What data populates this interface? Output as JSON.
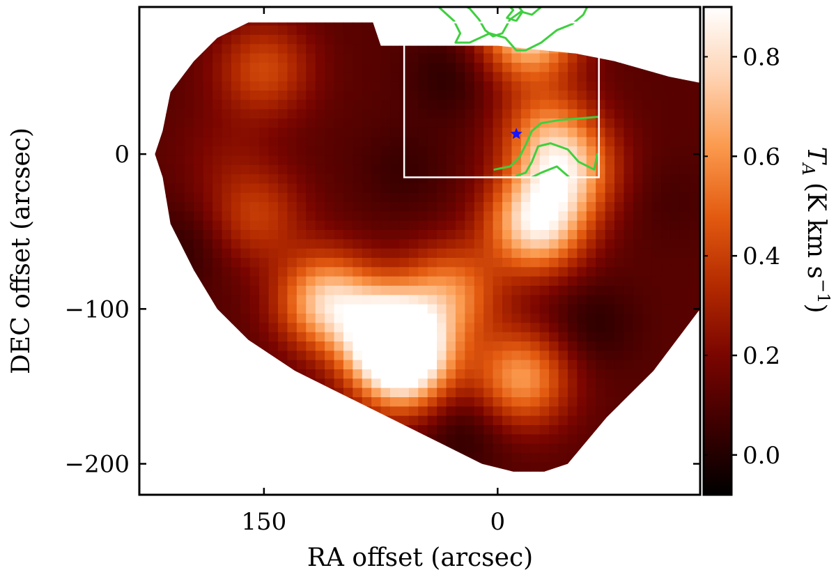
{
  "chart_data": {
    "type": "heatmap",
    "title": "",
    "xlabel": "RA offset (arcsec)",
    "ylabel": "DEC offset (arcsec)",
    "xlim": [
      230,
      -130
    ],
    "ylim": [
      -220,
      95
    ],
    "x_axis_reversed": true,
    "x_ticks": [
      150,
      0
    ],
    "x_tick_labels": [
      "150",
      "0"
    ],
    "y_ticks": [
      0,
      -100,
      -200
    ],
    "y_tick_labels": [
      "0",
      "−100",
      "−200"
    ],
    "colorbar": {
      "label": "T_A (K km s⁻¹)",
      "label_parts": {
        "symbol": "T",
        "subscript": "A",
        "units": "(K km s",
        "exponent": "−1",
        "close": ")"
      },
      "vmin": -0.08,
      "vmax": 0.9,
      "ticks": [
        0.0,
        0.2,
        0.4,
        0.6,
        0.8
      ],
      "tick_labels": [
        "0.0",
        "0.2",
        "0.4",
        "0.6",
        "0.8"
      ],
      "colormap": "gist_heat",
      "colormap_stops": [
        "#000000",
        "#3d0000",
        "#7a0500",
        "#b32a00",
        "#e35b10",
        "#fb9a4e",
        "#fed3b3",
        "#ffffff"
      ]
    },
    "coverage_polygon": [
      [
        160,
        85
      ],
      [
        80,
        85
      ],
      [
        75,
        70
      ],
      [
        0,
        70
      ],
      [
        -50,
        65
      ],
      [
        -75,
        60
      ],
      [
        -110,
        50
      ],
      [
        -135,
        45
      ],
      [
        -130,
        0
      ],
      [
        -130,
        -100
      ],
      [
        -100,
        -140
      ],
      [
        -70,
        -170
      ],
      [
        -45,
        -200
      ],
      [
        -30,
        -205
      ],
      [
        -10,
        -205
      ],
      [
        10,
        -200
      ],
      [
        40,
        -185
      ],
      [
        70,
        -170
      ],
      [
        100,
        -155
      ],
      [
        130,
        -140
      ],
      [
        160,
        -120
      ],
      [
        180,
        -100
      ],
      [
        195,
        -75
      ],
      [
        210,
        -45
      ],
      [
        215,
        -15
      ],
      [
        220,
        0
      ],
      [
        215,
        15
      ],
      [
        210,
        40
      ],
      [
        195,
        60
      ],
      [
        180,
        75
      ]
    ],
    "background_level": 0.12,
    "emission_peaks": [
      {
        "ra": 150,
        "dec": 55,
        "value": 0.42
      },
      {
        "ra": 155,
        "dec": -40,
        "value": 0.38
      },
      {
        "ra": 110,
        "dec": -95,
        "value": 0.72
      },
      {
        "ra": 70,
        "dec": -115,
        "value": 0.78
      },
      {
        "ra": 60,
        "dec": -135,
        "value": 0.9
      },
      {
        "ra": 30,
        "dec": -90,
        "value": 0.55
      },
      {
        "ra": -25,
        "dec": -45,
        "value": 0.82
      },
      {
        "ra": -45,
        "dec": -10,
        "value": 0.62
      },
      {
        "ra": -30,
        "dec": 15,
        "value": 0.45
      },
      {
        "ra": -20,
        "dec": 80,
        "value": 0.8
      },
      {
        "ra": -15,
        "dec": -145,
        "value": 0.62
      },
      {
        "ra": 175,
        "dec": 0,
        "value": 0.2
      }
    ],
    "emission_dips": [
      {
        "ra": 30,
        "dec": 50,
        "value": 0.02
      },
      {
        "ra": 60,
        "dec": -10,
        "value": 0.05
      },
      {
        "ra": -60,
        "dec": -110,
        "value": 0.02
      },
      {
        "ra": 20,
        "dec": -175,
        "value": 0.0
      },
      {
        "ra": 200,
        "dec": -60,
        "value": 0.03
      },
      {
        "ra": -110,
        "dec": -30,
        "value": 0.08
      }
    ],
    "box_region": {
      "ra_min": -65,
      "ra_max": 60,
      "dec_min": -15,
      "dec_max": 85,
      "color": "#ffffff"
    },
    "marker": {
      "shape": "star",
      "ra": -12,
      "dec": 13,
      "color": "#1414ff"
    },
    "contours": {
      "color": "#3fcf3f",
      "paths": [
        [
          [
            50,
            98
          ],
          [
            40,
            97
          ],
          [
            28,
            86
          ],
          [
            24,
            78
          ],
          [
            27,
            72
          ],
          [
            18,
            72
          ],
          [
            5,
            78
          ],
          [
            -5,
            75
          ],
          [
            -12,
            67
          ],
          [
            -18,
            67
          ],
          [
            -28,
            72
          ],
          [
            -38,
            80
          ],
          [
            -48,
            84
          ],
          [
            -55,
            90
          ],
          [
            -58,
            96
          ]
        ],
        [
          [
            25,
            98
          ],
          [
            18,
            94
          ],
          [
            12,
            87
          ],
          [
            8,
            80
          ],
          [
            3,
            76
          ],
          [
            -3,
            78
          ],
          [
            -8,
            87
          ],
          [
            -15,
            92
          ],
          [
            -22,
            90
          ],
          [
            -28,
            95
          ]
        ],
        [
          [
            -5,
            98
          ],
          [
            -10,
            93
          ],
          [
            -6,
            88
          ],
          [
            -12,
            86
          ],
          [
            -16,
            92
          ],
          [
            -12,
            97
          ]
        ],
        [
          [
            2,
            -10
          ],
          [
            -8,
            -8
          ],
          [
            -14,
            -2
          ],
          [
            -18,
            6
          ],
          [
            -22,
            15
          ],
          [
            -28,
            20
          ],
          [
            -40,
            22
          ],
          [
            -52,
            23
          ],
          [
            -64,
            24
          ]
        ],
        [
          [
            -64,
            0
          ],
          [
            -62,
            -10
          ],
          [
            -52,
            -5
          ],
          [
            -45,
            3
          ],
          [
            -34,
            7
          ],
          [
            -26,
            5
          ],
          [
            -22,
            -5
          ],
          [
            -18,
            -12
          ],
          [
            -12,
            -14
          ]
        ],
        [
          [
            -22,
            -15
          ],
          [
            -28,
            -12
          ],
          [
            -38,
            -8
          ],
          [
            -46,
            -15
          ]
        ]
      ]
    }
  }
}
